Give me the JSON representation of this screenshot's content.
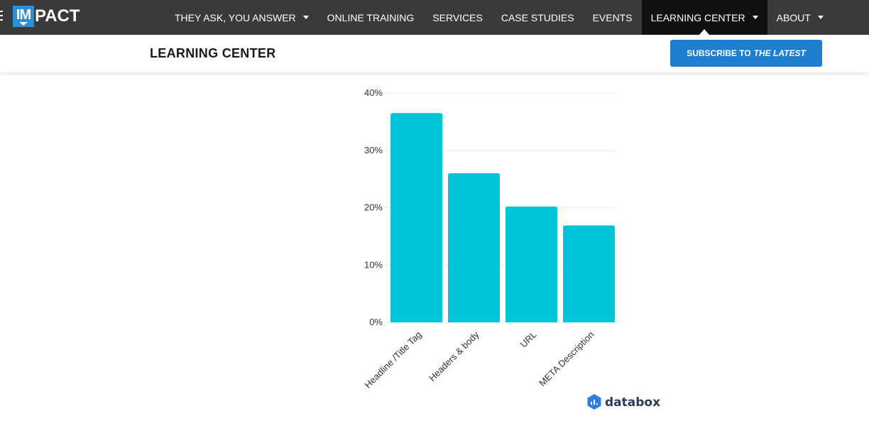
{
  "header": {
    "logo_text": "PACT",
    "logo_box_text": "IM",
    "nav": [
      {
        "label": "THEY ASK, YOU ANSWER",
        "dropdown": true
      },
      {
        "label": "ONLINE TRAINING",
        "dropdown": false
      },
      {
        "label": "SERVICES",
        "dropdown": false
      },
      {
        "label": "CASE STUDIES",
        "dropdown": false
      },
      {
        "label": "EVENTS",
        "dropdown": false
      },
      {
        "label": "LEARNING CENTER",
        "dropdown": true,
        "active": true
      },
      {
        "label": "ABOUT",
        "dropdown": true
      }
    ]
  },
  "subbar": {
    "title": "LEARNING CENTER",
    "subscribe_prefix": "SUBSCRIBE TO",
    "subscribe_emphasis": "THE LATEST"
  },
  "colors": {
    "nav_bg": "#3a3a3a",
    "nav_active_bg": "#111111",
    "accent": "#1e7fd0",
    "bar": "#00c5d8"
  },
  "chart_data": {
    "type": "bar",
    "categories": [
      "Headline /Title Tag",
      "Headers & body",
      "URL",
      "META Description"
    ],
    "values": [
      36.5,
      26,
      20.2,
      16.9
    ],
    "yticks": [
      "0%",
      "10%",
      "20%",
      "30%",
      "40%"
    ],
    "ylim": [
      0,
      40
    ],
    "grid": true,
    "title": "",
    "xlabel": "",
    "ylabel": ""
  },
  "watermark": {
    "text": "databox",
    "icon": "databox-logo-icon"
  }
}
